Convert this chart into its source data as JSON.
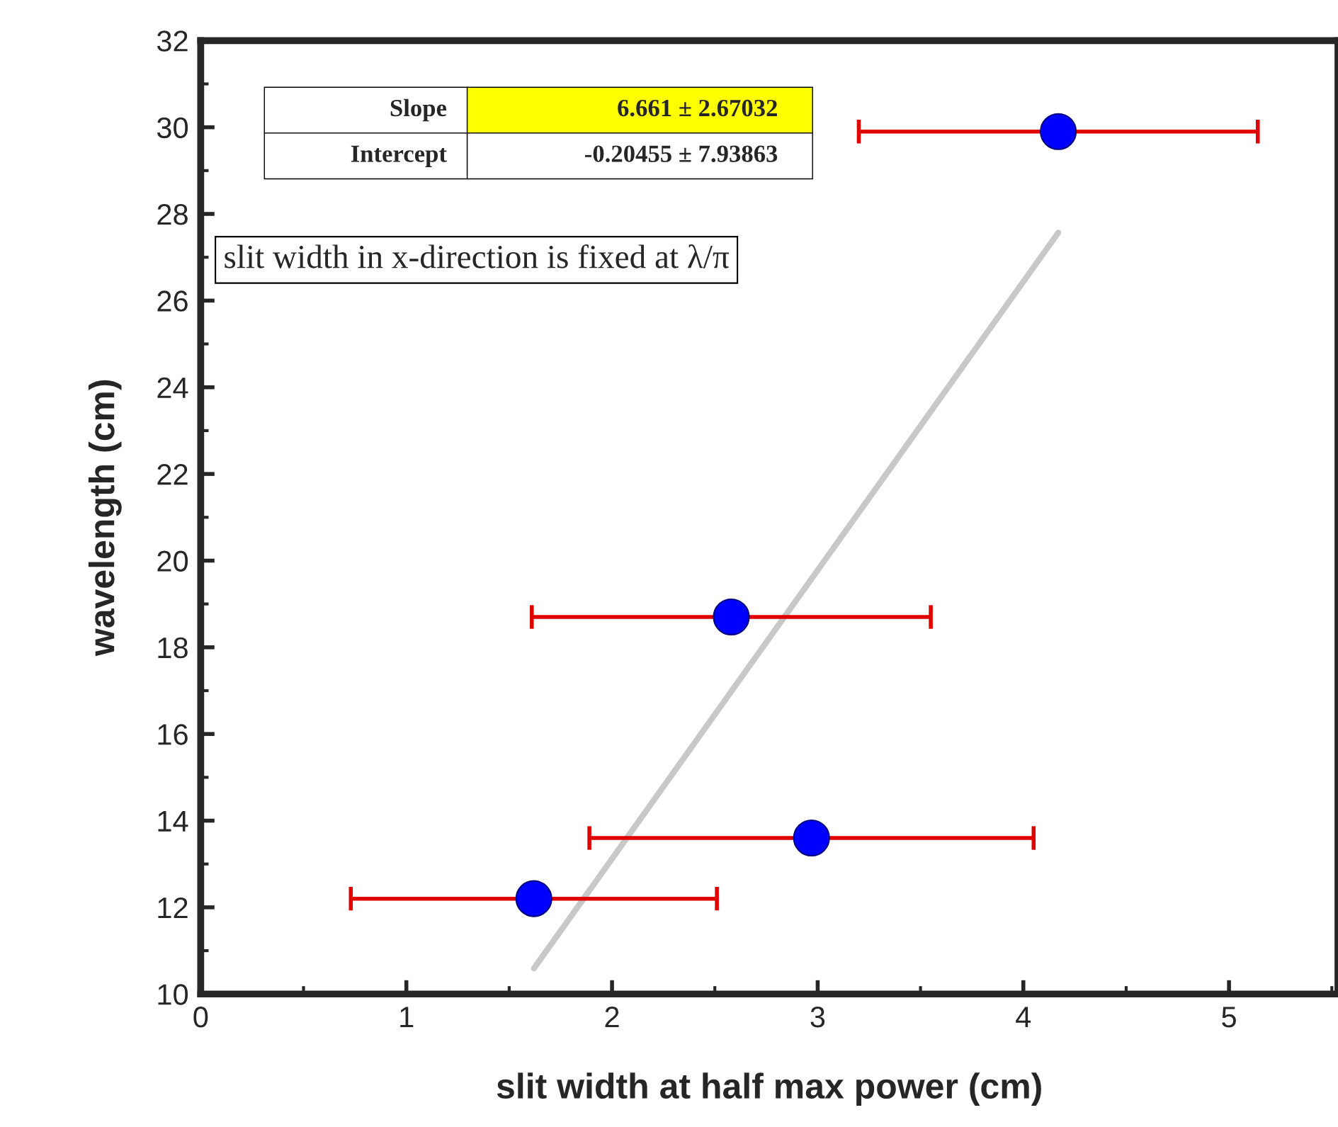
{
  "chart_data": {
    "type": "scatter",
    "xlabel": "slit width at half max power (cm)",
    "ylabel": "wavelength (cm)",
    "xlim": [
      0,
      5.53
    ],
    "ylim": [
      10,
      32
    ],
    "xticks": [
      0,
      1,
      2,
      3,
      4,
      5
    ],
    "yticks": [
      10,
      12,
      14,
      16,
      18,
      20,
      22,
      24,
      26,
      28,
      30,
      32
    ],
    "grid": false,
    "legend": false,
    "series": [
      {
        "color": "#0000ff",
        "marker": "circle",
        "x": [
          1.62,
          2.58,
          2.97,
          4.17
        ],
        "values": [
          12.2,
          18.7,
          13.6,
          29.9
        ],
        "xerrors": [
          0.89,
          0.97,
          1.08,
          0.97
        ]
      },
      {
        "type": "line",
        "color": "#c8c8c8",
        "x": [
          1.62,
          4.17
        ],
        "values": [
          10.59,
          27.57
        ]
      }
    ],
    "annotations": [
      "Slope",
      "6.661 ± 2.67032",
      "Intercept",
      "-0.20455 ± 7.93863",
      "slit width in x-direction is fixed at λ/π"
    ]
  }
}
